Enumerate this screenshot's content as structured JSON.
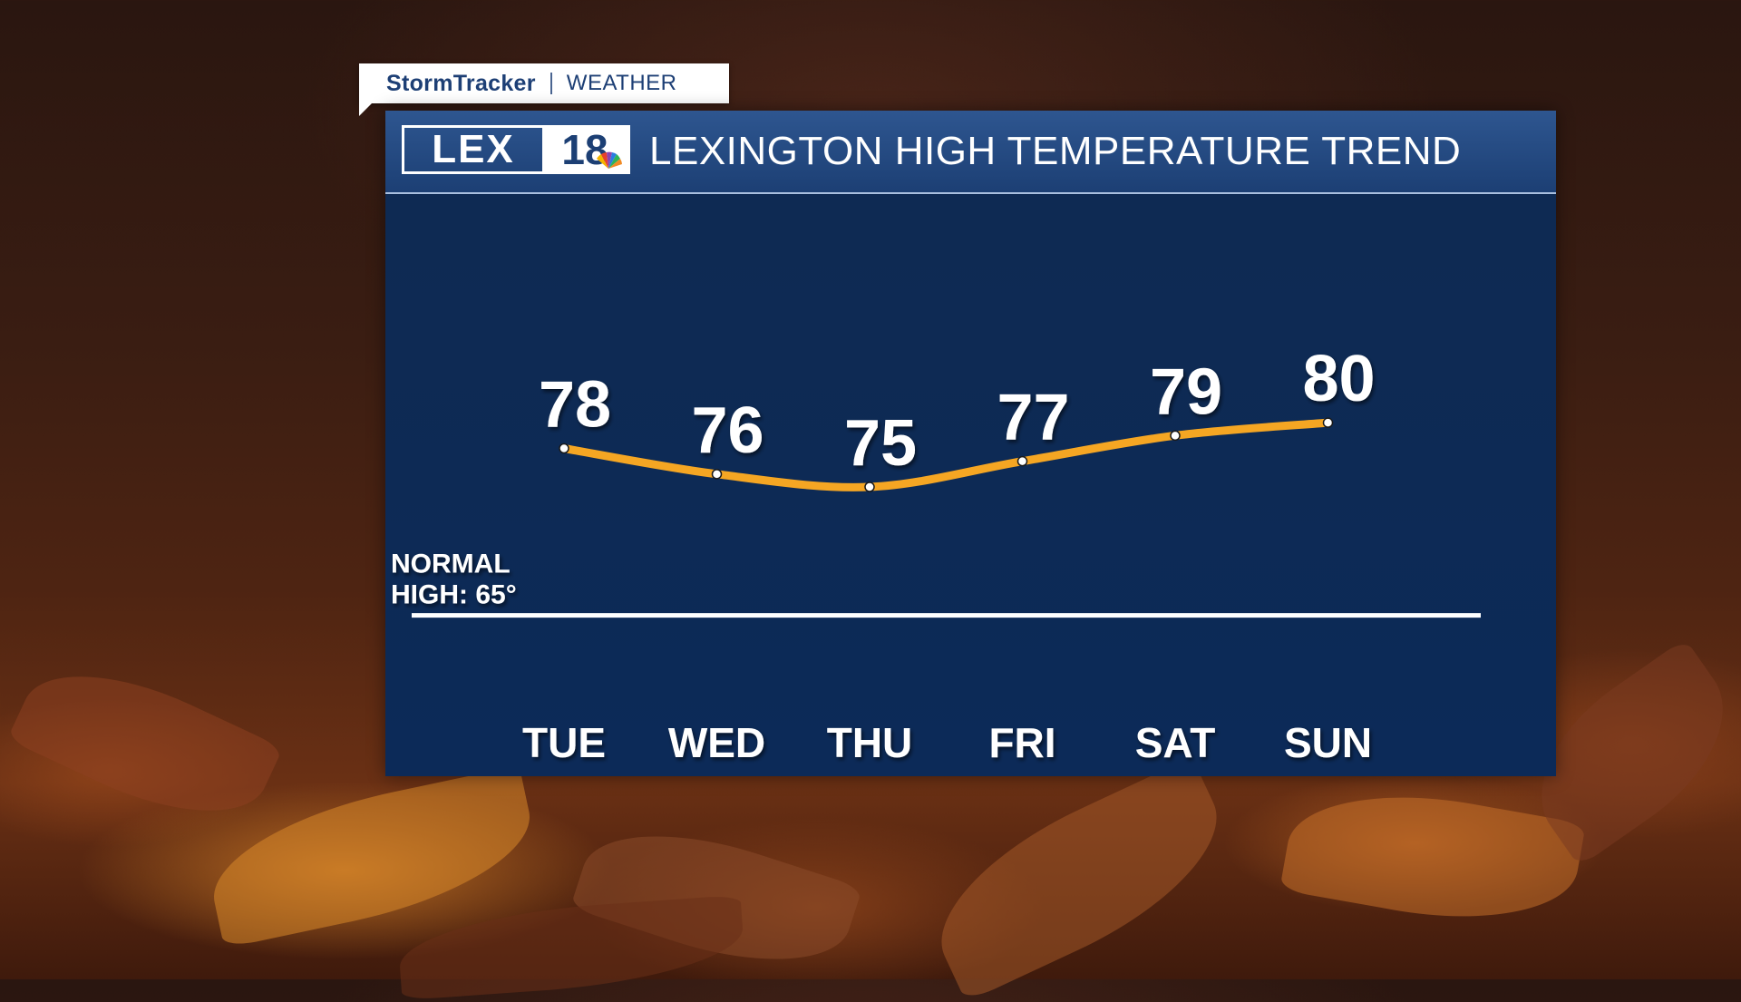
{
  "brand": {
    "stormtracker": "StormTracker",
    "weather": "WEATHER",
    "logo_text": "LEX",
    "logo_number": "18"
  },
  "title": "LEXINGTON HIGH TEMPERATURE TREND",
  "colors": {
    "trend_line": "#f5a623",
    "panel": "#0d2a55",
    "titlebar": "#1f4479",
    "normal_line": "#ffffff"
  },
  "chart_data": {
    "type": "line",
    "categories": [
      "TUE",
      "WED",
      "THU",
      "FRI",
      "SAT",
      "SUN"
    ],
    "series": [
      {
        "values": [
          78,
          76,
          75,
          77,
          79,
          80
        ]
      }
    ],
    "data_labels": [
      "78",
      "76",
      "75",
      "77",
      "79",
      "80"
    ],
    "reference_line": {
      "label_line1": "NORMAL",
      "label_line2": "HIGH: 65°",
      "value": 65
    },
    "ylim": [
      57,
      87
    ],
    "grid": false,
    "legend": "none"
  }
}
